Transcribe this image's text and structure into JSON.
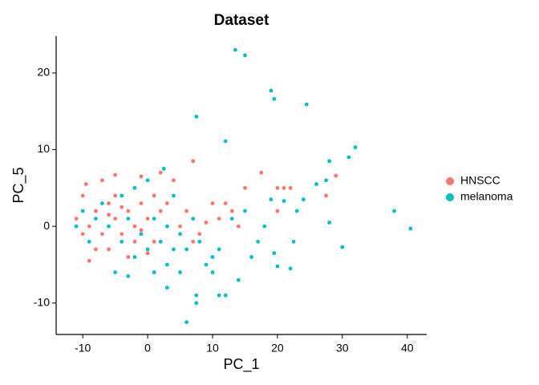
{
  "chart_data": {
    "type": "scatter",
    "title": "Dataset",
    "x_label": "PC_1",
    "y_label": "PC_5",
    "xlim": [
      -14.1,
      43.0
    ],
    "ylim": [
      -14.1,
      24.8
    ],
    "xticks": [
      -10,
      0,
      10,
      20,
      30,
      40
    ],
    "yticks": [
      -10,
      0,
      10,
      20
    ],
    "legend_position": "right",
    "series": [
      {
        "name": "HNSCC",
        "color": "#F8766D",
        "x": [
          7,
          17.5,
          20,
          21,
          22,
          29,
          27.5,
          20,
          15,
          10,
          12,
          11,
          13,
          14,
          9,
          8,
          6,
          4,
          2,
          -1,
          -5,
          -9.5,
          -7,
          -10,
          -11,
          -9,
          -8,
          -6,
          -5,
          -4,
          -3,
          -2,
          -1,
          0,
          1,
          2,
          3,
          -7,
          -9,
          -6,
          -5,
          -2,
          -3,
          0,
          5,
          7,
          -8,
          -4,
          -1,
          1,
          -6,
          -10
        ],
        "y": [
          8.5,
          7,
          5,
          5,
          5,
          6.6,
          4,
          2,
          5,
          3,
          3,
          1,
          2,
          0,
          0.5,
          -1,
          2,
          6,
          7,
          6.5,
          6.7,
          5.5,
          6,
          4,
          1,
          -4.5,
          2,
          3,
          1,
          -1,
          2,
          0,
          3,
          1,
          -2,
          2,
          3,
          -1,
          0,
          -3,
          4,
          -2,
          -4,
          -3.5,
          0,
          -2,
          -3,
          2.5,
          -0.5,
          4,
          1.5,
          -1
        ]
      },
      {
        "name": "melanoma",
        "color": "#00BFC4",
        "x": [
          13.5,
          15,
          19,
          19.5,
          24.5,
          7.5,
          12,
          32,
          31,
          28,
          27.5,
          2.5,
          38,
          40.5,
          30,
          26,
          24,
          19,
          21,
          23,
          28,
          22.5,
          19.5,
          20,
          22,
          14,
          12,
          11,
          10,
          6,
          7.5,
          7.5,
          5,
          3,
          1,
          -3,
          -5,
          -2,
          0,
          2,
          4,
          -4,
          -6,
          -8,
          -10,
          -11,
          -7,
          -4,
          -2,
          0,
          4,
          8,
          10,
          16,
          17,
          18,
          15,
          13,
          11,
          9,
          6,
          3,
          -1,
          1,
          -3,
          -9,
          3,
          5,
          7
        ],
        "y": [
          23,
          22.3,
          17.7,
          16.6,
          15.9,
          14.3,
          11.1,
          10.3,
          9,
          8.5,
          6,
          7.5,
          2,
          -0.3,
          -2.7,
          5.5,
          3.5,
          3.5,
          3.3,
          2,
          0.5,
          -2,
          -3.5,
          -5.2,
          -5.5,
          -7,
          -9,
          -9,
          -6,
          -12.5,
          -9,
          -10,
          -6,
          -8,
          -6,
          -6.5,
          -6,
          -4,
          -3,
          -2,
          -3,
          -2,
          0,
          1,
          2,
          0,
          3,
          4,
          5,
          6,
          4,
          -2,
          -4,
          -4,
          -2,
          0,
          2,
          1,
          -3,
          -5,
          -3,
          -5,
          -1,
          1,
          1,
          -2,
          0,
          -1,
          1
        ]
      }
    ]
  }
}
